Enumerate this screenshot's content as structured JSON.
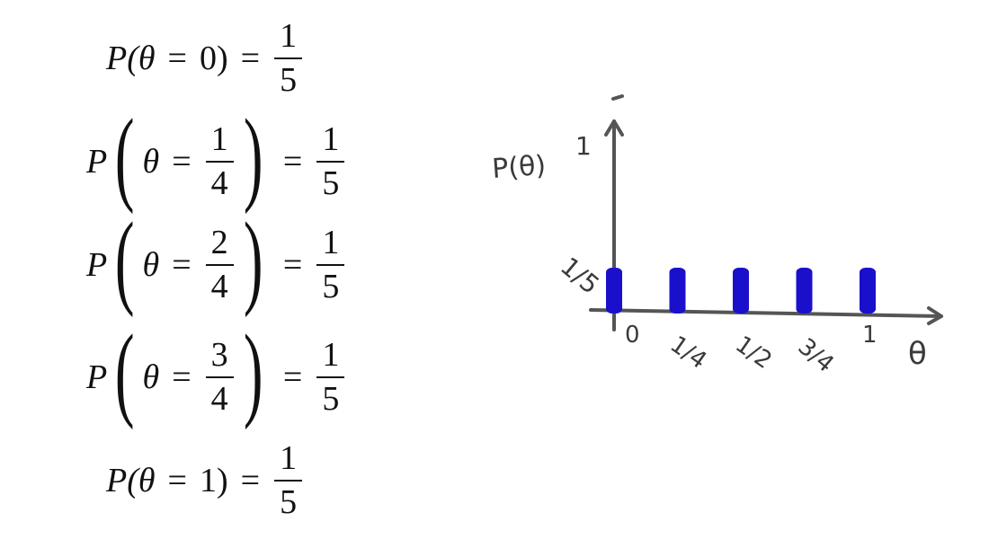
{
  "equations": [
    {
      "lhs_prefix": "P(",
      "theta": "θ",
      "eq": "=",
      "value": "0",
      "value_frac": null,
      "lhs_suffix": ")",
      "rhs_num": "1",
      "rhs_den": "5"
    },
    {
      "lhs_prefix": "P",
      "theta": "θ",
      "eq": "=",
      "value": null,
      "value_frac": {
        "num": "1",
        "den": "4"
      },
      "lhs_suffix": "",
      "rhs_num": "1",
      "rhs_den": "5"
    },
    {
      "lhs_prefix": "P",
      "theta": "θ",
      "eq": "=",
      "value": null,
      "value_frac": {
        "num": "2",
        "den": "4"
      },
      "lhs_suffix": "",
      "rhs_num": "1",
      "rhs_den": "5"
    },
    {
      "lhs_prefix": "P",
      "theta": "θ",
      "eq": "=",
      "value": null,
      "value_frac": {
        "num": "3",
        "den": "4"
      },
      "lhs_suffix": "",
      "rhs_num": "1",
      "rhs_den": "5"
    },
    {
      "lhs_prefix": "P(",
      "theta": "θ",
      "eq": "=",
      "value": "1",
      "value_frac": null,
      "lhs_suffix": ")",
      "rhs_num": "1",
      "rhs_den": "5"
    }
  ],
  "chart_data": {
    "type": "bar",
    "ylabel": "P(θ)",
    "xlabel": "θ",
    "x": [
      0,
      0.25,
      0.5,
      0.75,
      1
    ],
    "categories": [
      "0",
      "1/4",
      "1/2",
      "3/4",
      "1"
    ],
    "values": [
      0.2,
      0.2,
      0.2,
      0.2,
      0.2
    ],
    "y_ticks": [
      {
        "value": 0.2,
        "label": "1/5"
      },
      {
        "value": 1,
        "label": "1"
      }
    ],
    "ylim": [
      0,
      1
    ],
    "xlim": [
      0,
      1
    ],
    "bar_color": "#1a10cc",
    "axis_color": "#555555",
    "grid": false
  }
}
